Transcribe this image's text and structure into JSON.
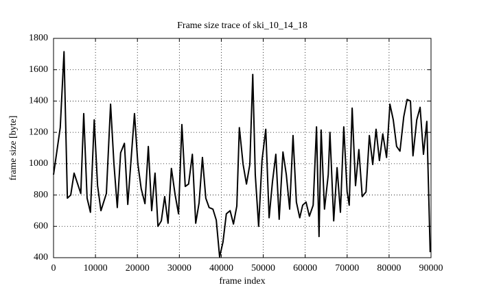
{
  "chart_data": {
    "type": "line",
    "title": "Frame size trace of ski_10_14_18",
    "x_label": "frame index",
    "y_label": "frame size [byte]",
    "xlim": [
      0,
      90000
    ],
    "xticks": [
      0,
      10000,
      20000,
      30000,
      40000,
      50000,
      60000,
      70000,
      80000,
      90000
    ],
    "ylim": [
      400,
      1800
    ],
    "yticks": [
      400,
      600,
      800,
      1000,
      1200,
      1400,
      1600,
      1800
    ],
    "grid": true,
    "x": [
      0,
      1600,
      2500,
      3300,
      4100,
      4900,
      6500,
      7200,
      8000,
      8800,
      9700,
      10500,
      11300,
      12600,
      13600,
      14400,
      15200,
      16000,
      16900,
      17700,
      19300,
      20100,
      20900,
      21800,
      22600,
      23400,
      24200,
      24900,
      25700,
      26500,
      27300,
      28100,
      29000,
      29800,
      30600,
      31400,
      32200,
      33100,
      33900,
      34700,
      35500,
      36300,
      37100,
      38000,
      38800,
      39600,
      40400,
      41200,
      42100,
      42900,
      43700,
      44300,
      45200,
      46000,
      46800,
      47500,
      48100,
      48900,
      49700,
      50600,
      51400,
      52200,
      53000,
      53800,
      54700,
      55500,
      56300,
      57100,
      57900,
      58700,
      59400,
      60200,
      61000,
      61900,
      62700,
      63300,
      63800,
      64600,
      65500,
      65900,
      66800,
      67600,
      68400,
      69200,
      70000,
      70500,
      71200,
      72000,
      72800,
      73600,
      74500,
      75300,
      76100,
      76900,
      77700,
      78500,
      79400,
      80200,
      81000,
      81800,
      82600,
      83500,
      84300,
      85100,
      85700,
      86600,
      87400,
      88200,
      89000,
      89800
    ],
    "series": [
      {
        "color": "#000000",
        "values": [
          930,
          1230,
          1715,
          780,
          800,
          940,
          810,
          1320,
          780,
          690,
          1280,
          860,
          700,
          810,
          1380,
          1000,
          720,
          1070,
          1130,
          740,
          1320,
          1000,
          840,
          745,
          1110,
          700,
          940,
          600,
          635,
          790,
          620,
          970,
          800,
          680,
          1250,
          855,
          870,
          1060,
          620,
          750,
          1040,
          780,
          720,
          710,
          640,
          405,
          500,
          680,
          700,
          615,
          730,
          1230,
          995,
          870,
          995,
          1570,
          930,
          600,
          1020,
          1220,
          655,
          885,
          1060,
          645,
          1075,
          930,
          710,
          1180,
          755,
          655,
          735,
          755,
          665,
          735,
          1235,
          535,
          1215,
          710,
          930,
          1200,
          635,
          975,
          690,
          1235,
          820,
          735,
          1355,
          860,
          1090,
          790,
          820,
          1180,
          995,
          1220,
          1020,
          1190,
          1040,
          1380,
          1280,
          1110,
          1080,
          1300,
          1410,
          1400,
          1050,
          1280,
          1360,
          1060,
          1270,
          435
        ]
      }
    ]
  }
}
